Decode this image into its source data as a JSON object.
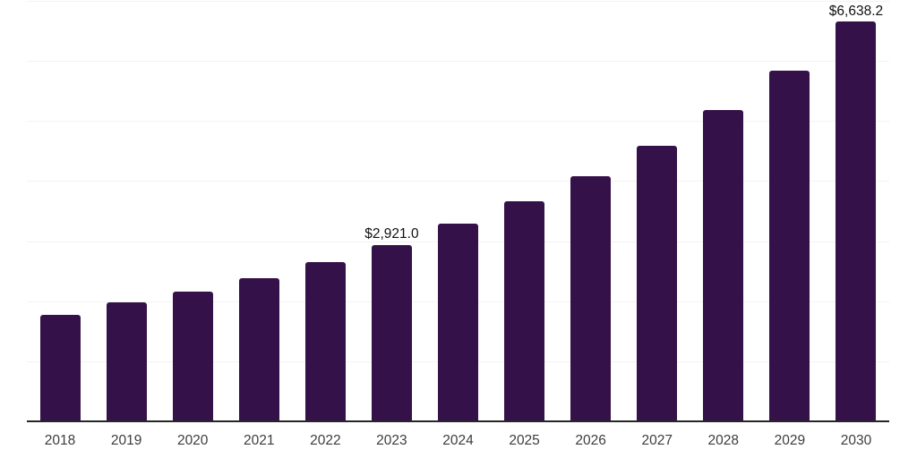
{
  "chart_data": {
    "type": "bar",
    "categories": [
      "2018",
      "2019",
      "2020",
      "2021",
      "2022",
      "2023",
      "2024",
      "2025",
      "2026",
      "2027",
      "2028",
      "2029",
      "2030"
    ],
    "values": [
      1765,
      1960,
      2145,
      2370,
      2630,
      2921.0,
      3270,
      3645,
      4070,
      4575,
      5165,
      5830,
      6638.2
    ],
    "data_labels": [
      "",
      "",
      "",
      "",
      "",
      "$2,921.0",
      "",
      "",
      "",
      "",
      "",
      "",
      "$6,638.2"
    ],
    "title": "",
    "xlabel": "",
    "ylabel": "",
    "ylim": [
      0,
      7000
    ],
    "grid": true,
    "grid_interval": 1000,
    "legend": "none",
    "colors": {
      "bar": "#351149",
      "gridline": "#f3f3f3",
      "axis_line": "#262626",
      "value_label": "#111111",
      "tick_label": "#3d3d3d",
      "background": "#ffffff"
    }
  }
}
